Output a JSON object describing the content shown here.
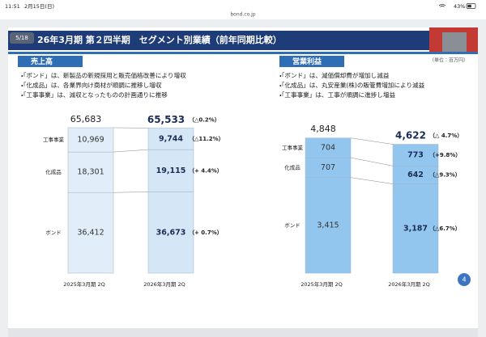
{
  "status_bar": {
    "time": "11:51",
    "date": "2月15日(日)",
    "url": "bond.co.jp",
    "battery": "43%"
  },
  "slide": {
    "page": "5/18",
    "title": "26年3月期 第２四半期　セグメント別業績（前年同期比較）",
    "unit": "（単位：百万円）",
    "page_number": "4"
  },
  "chart_data": [
    {
      "type": "stacked_bar",
      "title": "売上高",
      "bullets": [
        "・「ボンド」は、新製品の新規採用と販売価格改善により増収",
        "・「化成品」は、各業界向け商材が順調に推移し増収",
        "・「工事事業」は、減収となったものの計画通りに推移"
      ],
      "categories": [
        "2025年3月期 2Q",
        "2026年3月期 2Q"
      ],
      "bar_colors": [
        "#e1edf8",
        "#d5e6f6"
      ],
      "totals": [
        65683,
        65533
      ],
      "total_labels": [
        "65,683",
        "65,533"
      ],
      "total_change_label": "（△0.2%）",
      "series": [
        {
          "name": "ボンド",
          "values": [
            36412,
            36673
          ],
          "value_labels": [
            "36,412",
            "36,673"
          ],
          "change_label": "（+ 0.7%）"
        },
        {
          "name": "化成品",
          "values": [
            18301,
            19115
          ],
          "value_labels": [
            "18,301",
            "19,115"
          ],
          "change_label": "（+ 4.4%）"
        },
        {
          "name": "工事事業",
          "values": [
            10969,
            9744
          ],
          "value_labels": [
            "10,969",
            "9,744"
          ],
          "change_label": "（△11.2%）"
        }
      ]
    },
    {
      "type": "stacked_bar",
      "title": "営業利益",
      "bullets": [
        "・「ボンド」は、減価償却費が増加し減益",
        "・「化成品」は、丸安産業(株)の販管費増加により減益",
        "・「工事事業」は、工事が順調に進捗し増益"
      ],
      "categories": [
        "2025年3月期 2Q",
        "2026年3月期 2Q"
      ],
      "bar_colors": [
        "#93c6ee",
        "#93c6ee"
      ],
      "totals": [
        4848,
        4622
      ],
      "total_labels": [
        "4,848",
        "4,622"
      ],
      "total_change_label": "（△ 4.7%）",
      "series": [
        {
          "name": "ボンド",
          "values": [
            3415,
            3187
          ],
          "value_labels": [
            "3,415",
            "3,187"
          ],
          "change_label": "（△6.7%）"
        },
        {
          "name": "化成品",
          "values": [
            707,
            642
          ],
          "value_labels": [
            "707",
            "642"
          ],
          "change_label": "（△9.3%）"
        },
        {
          "name": "工事事業",
          "values": [
            704,
            773
          ],
          "value_labels": [
            "704",
            "773"
          ],
          "change_label": "（+9.8%）"
        }
      ]
    }
  ]
}
